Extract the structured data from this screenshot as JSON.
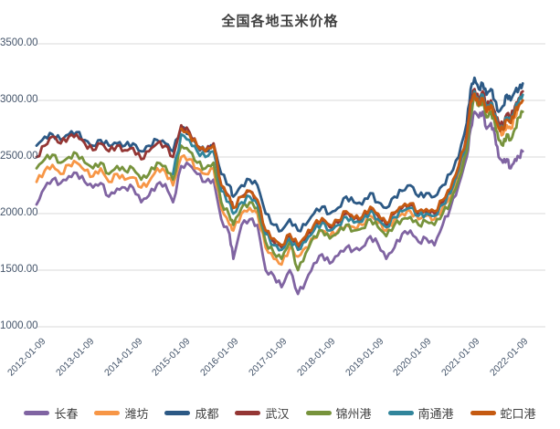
{
  "title": "全国各地玉米价格",
  "colors": {
    "title_text": "#3f3f3f",
    "axis_label": "#44546a",
    "gridline": "#d9d9d9",
    "background": "#ffffff"
  },
  "chart_data": {
    "type": "line",
    "title": "全国各地玉米价格",
    "xlabel": "",
    "ylabel": "",
    "ylim": [
      1000,
      3500
    ],
    "yticks": [
      1000,
      1500,
      2000,
      2500,
      3000,
      3500
    ],
    "ytick_labels": [
      "1000.00",
      "1500.00",
      "2000.00",
      "2500.00",
      "3000.00",
      "3500.00"
    ],
    "xtick_labels": [
      "2012-01-09",
      "2013-01-09",
      "2014-01-09",
      "2015-01-09",
      "2016-01-09",
      "2017-01-09",
      "2018-01-09",
      "2019-01-09",
      "2020-01-09",
      "2021-01-09",
      "2022-01-09"
    ],
    "xlim": [
      2012.0,
      2022.6
    ],
    "grid": "horizontal",
    "legend_position": "bottom",
    "x": [
      2012.0,
      2012.17,
      2012.33,
      2012.5,
      2012.67,
      2012.83,
      2013.0,
      2013.17,
      2013.33,
      2013.5,
      2013.67,
      2013.83,
      2014.0,
      2014.17,
      2014.33,
      2014.5,
      2014.67,
      2014.83,
      2015.0,
      2015.17,
      2015.33,
      2015.5,
      2015.67,
      2015.83,
      2016.0,
      2016.08,
      2016.25,
      2016.42,
      2016.58,
      2016.75,
      2016.92,
      2017.08,
      2017.25,
      2017.42,
      2017.58,
      2017.75,
      2017.92,
      2018.08,
      2018.25,
      2018.42,
      2018.58,
      2018.75,
      2018.92,
      2019.08,
      2019.25,
      2019.42,
      2019.58,
      2019.75,
      2019.92,
      2020.08,
      2020.25,
      2020.42,
      2020.58,
      2020.75,
      2020.92,
      2021.0,
      2021.08,
      2021.17,
      2021.25,
      2021.33,
      2021.42,
      2021.5,
      2021.58,
      2021.67,
      2021.75,
      2021.83,
      2021.92,
      2022.0,
      2022.08
    ],
    "series": [
      {
        "name": "长春",
        "id": "changchun",
        "color": "#8064A2",
        "values": [
          2080,
          2230,
          2300,
          2270,
          2330,
          2360,
          2280,
          2230,
          2270,
          2150,
          2220,
          2230,
          2230,
          2100,
          2160,
          2260,
          2260,
          2100,
          2420,
          2430,
          2350,
          2280,
          2300,
          1950,
          1820,
          1600,
          1900,
          1950,
          1900,
          1500,
          1450,
          1350,
          1500,
          1290,
          1400,
          1560,
          1640,
          1560,
          1630,
          1700,
          1680,
          1700,
          1800,
          1730,
          1600,
          1700,
          1820,
          1850,
          1750,
          1780,
          1720,
          1900,
          2050,
          2250,
          2500,
          2750,
          2900,
          2850,
          2900,
          2750,
          2800,
          2700,
          2500,
          2450,
          2480,
          2400,
          2480,
          2500,
          2550
        ]
      },
      {
        "name": "潍坊",
        "id": "weifang",
        "color": "#F79646",
        "values": [
          2280,
          2380,
          2430,
          2350,
          2430,
          2450,
          2380,
          2330,
          2400,
          2280,
          2350,
          2300,
          2320,
          2230,
          2280,
          2400,
          2370,
          2250,
          2500,
          2480,
          2400,
          2350,
          2400,
          2050,
          1900,
          1850,
          2000,
          2050,
          2000,
          1700,
          1600,
          1550,
          1700,
          1620,
          1700,
          1780,
          1850,
          1800,
          1850,
          1900,
          1880,
          1900,
          1980,
          1920,
          1850,
          1950,
          2000,
          2020,
          1950,
          1980,
          1950,
          2050,
          2150,
          2350,
          2600,
          2900,
          3050,
          2950,
          3000,
          2900,
          2950,
          2850,
          2750,
          2700,
          2780,
          2750,
          2850,
          2950,
          3000
        ]
      },
      {
        "name": "成都",
        "id": "chengdu",
        "color": "#2C5985",
        "values": [
          2600,
          2680,
          2700,
          2650,
          2700,
          2720,
          2650,
          2600,
          2650,
          2600,
          2620,
          2600,
          2620,
          2550,
          2600,
          2650,
          2620,
          2550,
          2770,
          2700,
          2600,
          2550,
          2600,
          2350,
          2250,
          2150,
          2250,
          2300,
          2250,
          2000,
          1900,
          1850,
          1950,
          1850,
          1900,
          2000,
          2060,
          2000,
          2050,
          2150,
          2100,
          2080,
          2180,
          2100,
          2050,
          2150,
          2200,
          2250,
          2150,
          2180,
          2150,
          2250,
          2350,
          2500,
          2800,
          3100,
          3200,
          3100,
          3150,
          3050,
          3100,
          3000,
          2900,
          2950,
          3050,
          3000,
          3080,
          3100,
          3150
        ]
      },
      {
        "name": "武汉",
        "id": "wuhan",
        "color": "#943634",
        "values": [
          2500,
          2600,
          2680,
          2620,
          2680,
          2700,
          2620,
          2560,
          2620,
          2550,
          2600,
          2560,
          2580,
          2480,
          2550,
          2620,
          2600,
          2500,
          2780,
          2720,
          2600,
          2550,
          2620,
          2250,
          2150,
          2050,
          2150,
          2200,
          2100,
          1850,
          1750,
          1700,
          1800,
          1700,
          1780,
          1880,
          1950,
          1880,
          1920,
          2000,
          1950,
          1950,
          2050,
          1980,
          1900,
          2000,
          2050,
          2080,
          2000,
          2020,
          2000,
          2100,
          2200,
          2400,
          2700,
          3000,
          3100,
          3000,
          3080,
          2950,
          3000,
          2900,
          2800,
          2780,
          2880,
          2850,
          2950,
          3020,
          3080
        ]
      },
      {
        "name": "锦州港",
        "id": "jinzhougang",
        "color": "#77933C",
        "values": [
          2400,
          2480,
          2520,
          2450,
          2500,
          2530,
          2450,
          2400,
          2450,
          2350,
          2420,
          2380,
          2400,
          2300,
          2350,
          2450,
          2420,
          2300,
          2600,
          2550,
          2450,
          2400,
          2450,
          2100,
          1980,
          1900,
          2050,
          2100,
          2050,
          1750,
          1650,
          1600,
          1750,
          1500,
          1650,
          1800,
          1850,
          1780,
          1830,
          1900,
          1850,
          1870,
          1950,
          1880,
          1800,
          1900,
          1950,
          1970,
          1900,
          1930,
          1900,
          2000,
          2100,
          2300,
          2550,
          2850,
          3050,
          2950,
          3000,
          2850,
          2900,
          2800,
          2650,
          2600,
          2700,
          2650,
          2750,
          2850,
          2900
        ]
      },
      {
        "name": "南通港",
        "id": "nantonggang",
        "color": "#31859B",
        "values": [
          null,
          null,
          null,
          null,
          null,
          null,
          null,
          null,
          null,
          null,
          null,
          null,
          null,
          null,
          null,
          null,
          null,
          2350,
          2700,
          2650,
          2550,
          2500,
          2550,
          2200,
          2100,
          2000,
          2100,
          2150,
          2080,
          1820,
          1720,
          1680,
          1780,
          1680,
          1750,
          1850,
          1920,
          1850,
          1900,
          1970,
          1920,
          1930,
          2020,
          1950,
          1880,
          1970,
          2020,
          2050,
          1980,
          2000,
          1980,
          2080,
          2180,
          2380,
          2650,
          2950,
          3080,
          2980,
          3050,
          2920,
          2980,
          2880,
          2780,
          2760,
          2850,
          2820,
          2920,
          3000,
          3050
        ]
      },
      {
        "name": "蛇口港",
        "id": "shekougang",
        "color": "#C55A11",
        "values": [
          null,
          null,
          null,
          null,
          null,
          null,
          null,
          null,
          null,
          null,
          null,
          null,
          null,
          null,
          null,
          null,
          null,
          null,
          2750,
          2700,
          2600,
          2550,
          2600,
          2250,
          2150,
          2050,
          2150,
          2200,
          2120,
          1850,
          1780,
          1720,
          1820,
          1720,
          1800,
          1900,
          1960,
          1900,
          1940,
          2020,
          1960,
          1970,
          2060,
          2000,
          1920,
          2010,
          2060,
          2090,
          2020,
          2040,
          2020,
          2120,
          2220,
          2420,
          2680,
          2980,
          3060,
          2960,
          3020,
          2900,
          2960,
          2860,
          2760,
          2740,
          2830,
          2800,
          2900,
          2960,
          3000
        ]
      }
    ]
  }
}
